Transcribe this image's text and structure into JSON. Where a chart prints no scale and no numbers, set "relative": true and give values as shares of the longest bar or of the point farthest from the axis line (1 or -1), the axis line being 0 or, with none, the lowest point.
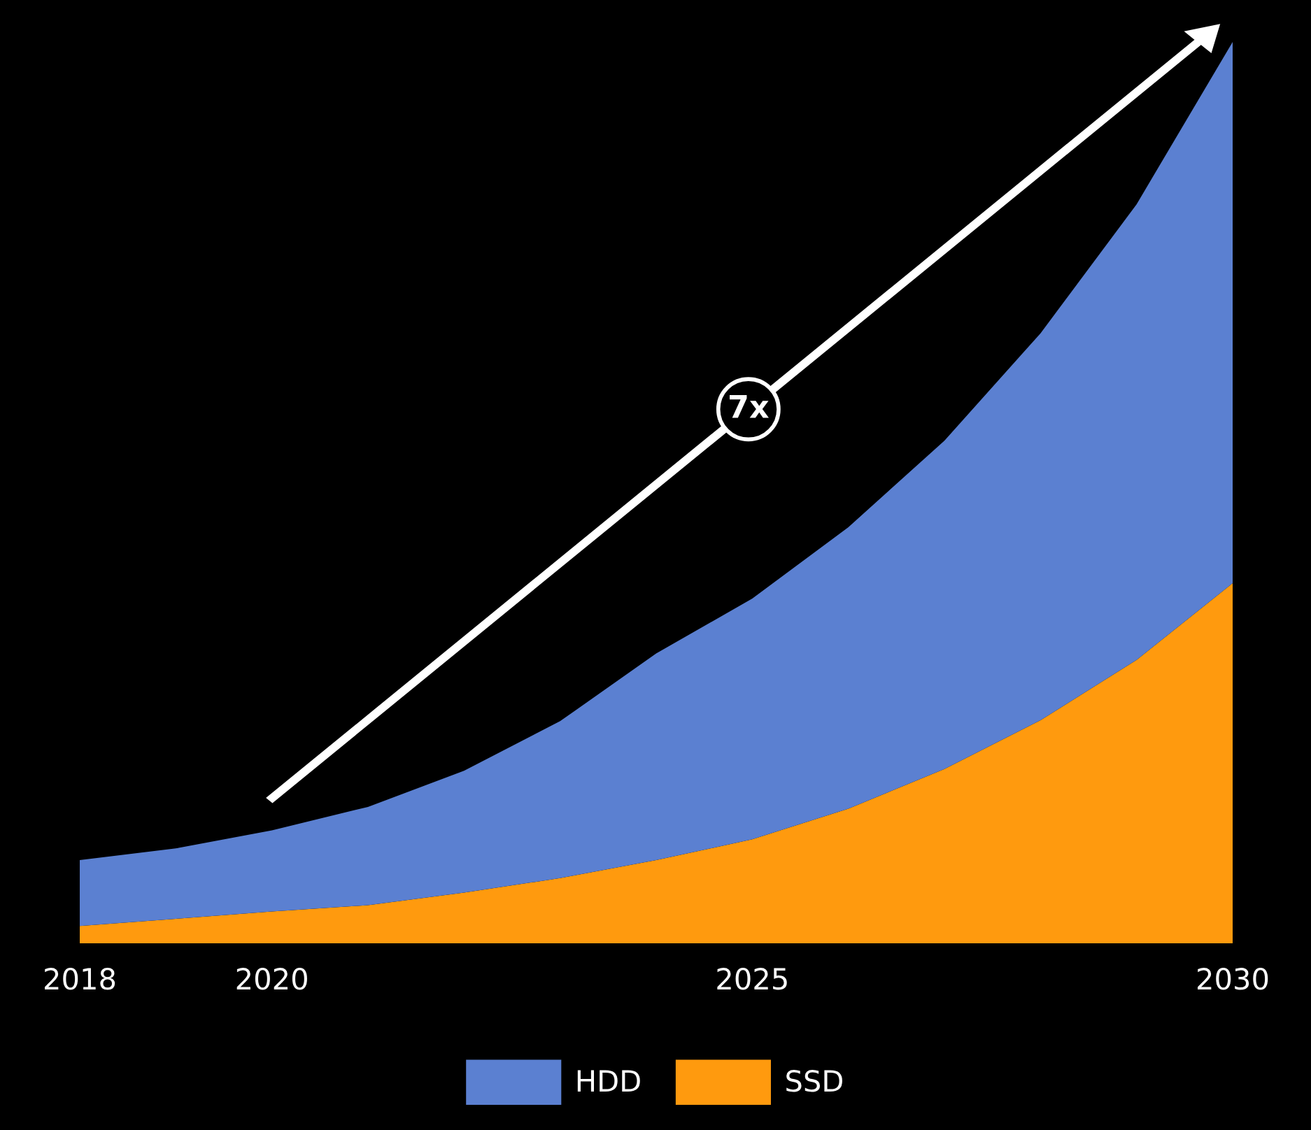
{
  "chart_data": {
    "type": "area",
    "stacked": true,
    "relative": true,
    "x": [
      2018,
      2019,
      2020,
      2021,
      2022,
      2023,
      2024,
      2025,
      2026,
      2027,
      2028,
      2029,
      2030
    ],
    "xlim": [
      2018,
      2030
    ],
    "xticks": [
      2018,
      2020,
      2025,
      2030
    ],
    "tick_labels": "x",
    "series": [
      {
        "name": "SSD",
        "color": "#ff9a0e",
        "values": [
          0.02,
          0.028,
          0.036,
          0.043,
          0.057,
          0.073,
          0.093,
          0.116,
          0.15,
          0.194,
          0.248,
          0.315,
          0.4
        ]
      },
      {
        "name": "HDD",
        "color": "#5b80d1",
        "values": [
          0.073,
          0.078,
          0.09,
          0.109,
          0.135,
          0.174,
          0.229,
          0.267,
          0.312,
          0.364,
          0.429,
          0.505,
          0.6
        ]
      }
    ],
    "legend": "bottom",
    "annotations": [
      "7x"
    ]
  }
}
